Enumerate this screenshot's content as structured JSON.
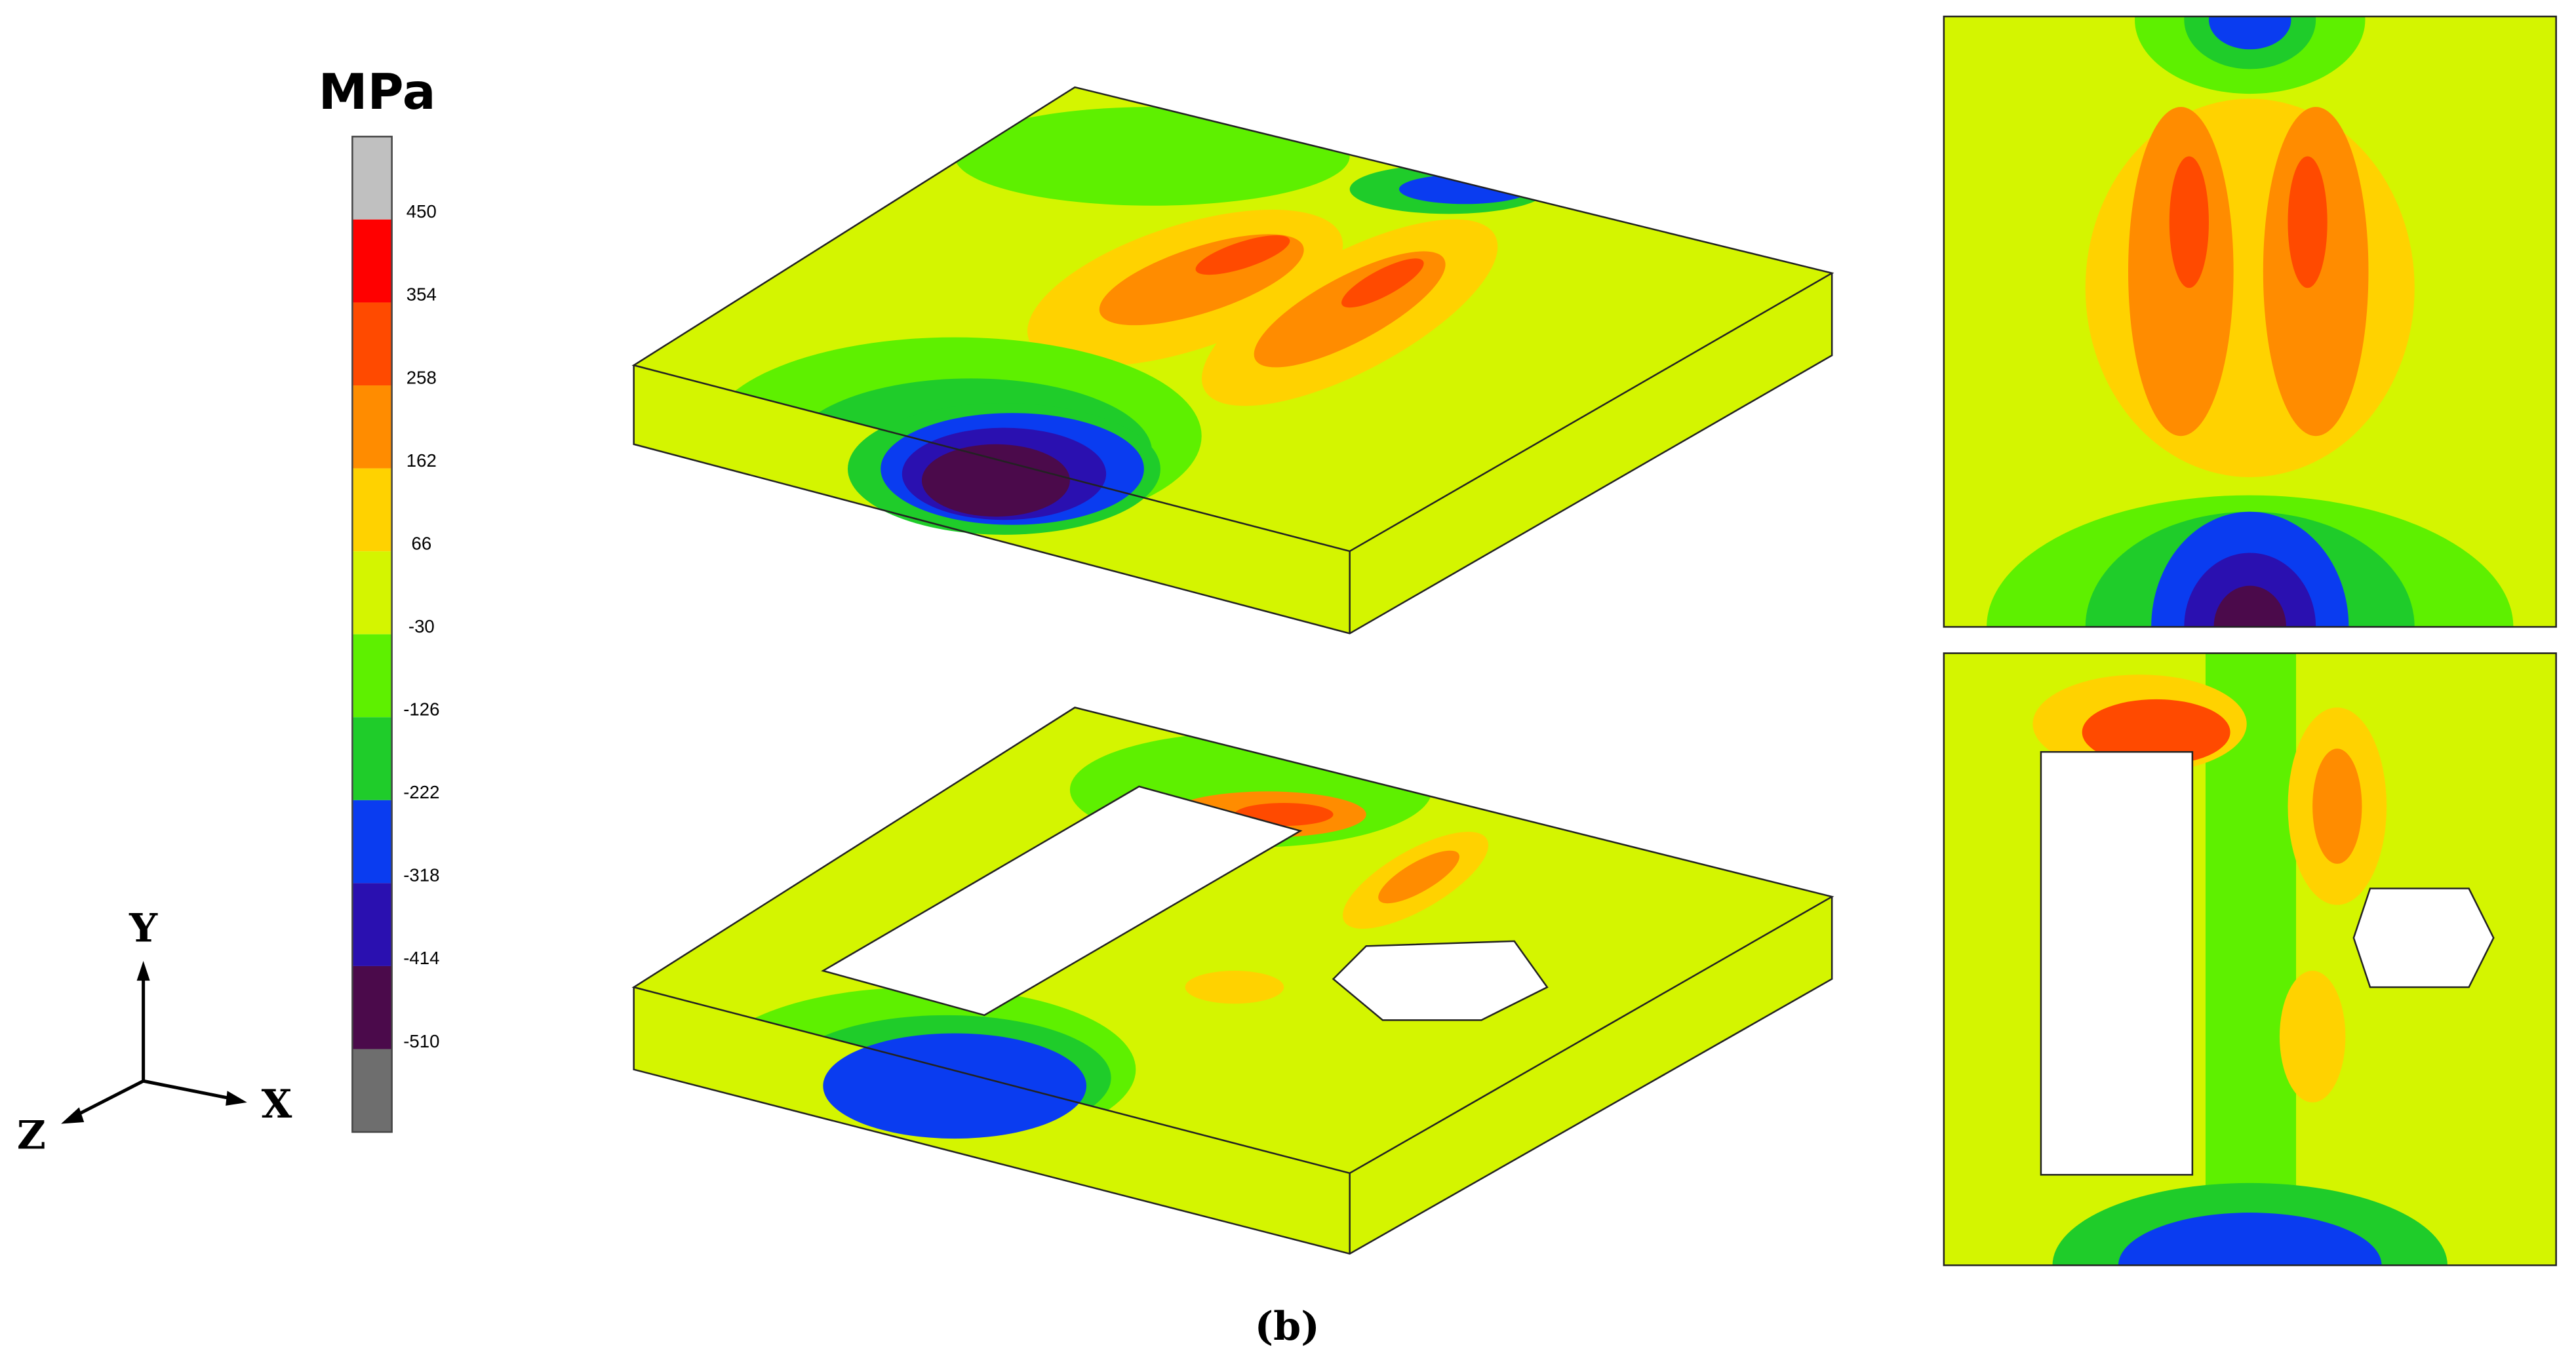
{
  "colorbar": {
    "unit": "MPa",
    "labels": [
      450,
      354,
      258,
      162,
      66,
      -30,
      -126,
      -222,
      -318,
      -414,
      -510
    ],
    "colors": [
      "#c0c0c0",
      "#ff0000",
      "#ff4a00",
      "#ff8c00",
      "#ffd200",
      "#d4f500",
      "#5ef000",
      "#1fcc2a",
      "#0a3cf0",
      "#2a10b0",
      "#4b0a4b",
      "#6e6e6e"
    ]
  },
  "axes": {
    "y": "Y",
    "x": "X",
    "z": "Z"
  },
  "caption": "(b)"
}
